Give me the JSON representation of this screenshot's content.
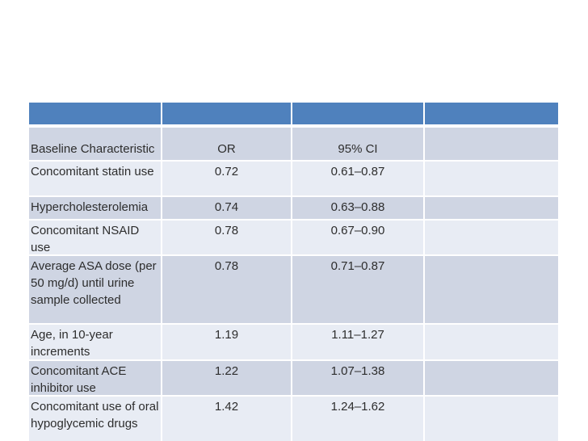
{
  "slide": {
    "background_color": "#ffffff"
  },
  "table": {
    "style": {
      "header_fill": "#4f81bd",
      "band_dark_fill": "#cfd5e3",
      "band_light_fill": "#e8ecf4",
      "text_color": "#2d2d2d"
    },
    "header_cells": [
      "",
      "",
      "",
      ""
    ],
    "rows": [
      {
        "characteristic": "Baseline Characteristic",
        "or": "OR",
        "ci": "95% CI",
        "extra": ""
      },
      {
        "characteristic": "Concomitant statin use",
        "or": "0.72",
        "ci": "0.61–0.87",
        "extra": ""
      },
      {
        "characteristic": "Hypercholesterolemia",
        "or": "0.74",
        "ci": "0.63–0.88",
        "extra": ""
      },
      {
        "characteristic": "Concomitant NSAID use",
        "or": "0.78",
        "ci": "0.67–0.90",
        "extra": ""
      },
      {
        "characteristic": "Average ASA dose (per 50 mg/d) until urine sample collected",
        "or": "0.78",
        "ci": "0.71–0.87",
        "extra": ""
      },
      {
        "characteristic": "Age, in 10-year increments",
        "or": "1.19",
        "ci": "1.11–1.27",
        "extra": ""
      },
      {
        "characteristic": "Concomitant ACE inhibitor use",
        "or": "1.22",
        "ci": "1.07–1.38",
        "extra": ""
      },
      {
        "characteristic": "Concomitant use of oral hypoglycemic drugs",
        "or": "1.42",
        "ci": "1.24–1.62",
        "extra": ""
      }
    ]
  }
}
